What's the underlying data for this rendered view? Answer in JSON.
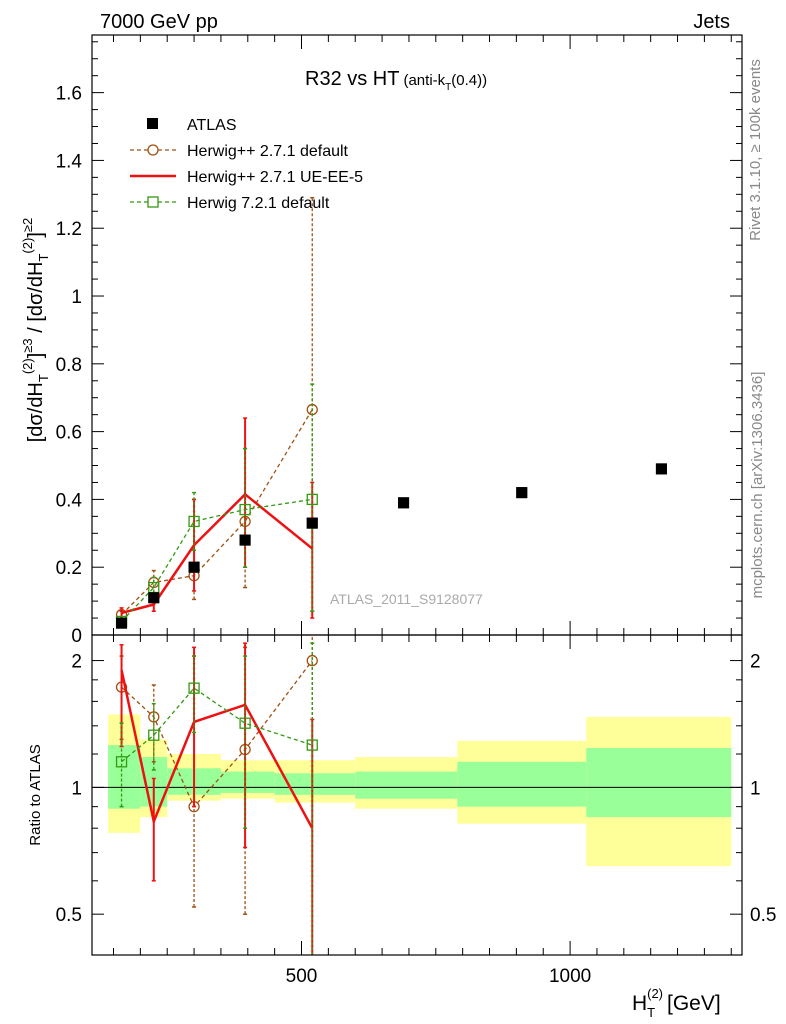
{
  "header": {
    "left": "7000 GeV pp",
    "right": "Jets"
  },
  "side_labels": {
    "rivet": "Rivet 3.1.10, ≥ 100k events",
    "mcplots": "mcplots.cern.ch [arXiv:1306.3436]"
  },
  "watermark": "ATLAS_2011_S9128077",
  "chart_data": [
    {
      "type": "scatter",
      "panel": "main",
      "title": "R32 vs HT",
      "title_suffix": "(anti-k",
      "title_suffix_sub": "T",
      "title_suffix_end": "(0.4))",
      "ylabel": "[dσ/dH_T^(2)]^≥3 / [dσ/dH_T^(2)]^≥2",
      "xlim": [
        110,
        1320
      ],
      "ylim": [
        0,
        1.77
      ],
      "yticks": [
        0,
        0.2,
        0.4,
        0.6,
        0.8,
        1,
        1.2,
        1.4,
        1.6
      ],
      "ytick_labels": [
        "0",
        "0.2",
        "0.4",
        "0.6",
        "0.8",
        "1",
        "1.2",
        "1.4",
        "1.6"
      ],
      "legend_position": "top-left",
      "series": [
        {
          "name": "ATLAS",
          "style": "marker-square",
          "color": "#000000",
          "x": [
            165,
            225,
            300,
            395,
            520,
            690,
            910,
            1170
          ],
          "y": [
            0.035,
            0.11,
            0.2,
            0.28,
            0.33,
            0.39,
            0.42,
            0.49
          ]
        },
        {
          "name": "Herwig++ 2.7.1 default",
          "style": "dashed-circle",
          "color": "#a05010",
          "x": [
            165,
            225,
            300,
            395,
            520
          ],
          "y": [
            0.06,
            0.155,
            0.175,
            0.335,
            0.665
          ],
          "yerr_low": [
            0.045,
            0.125,
            0.105,
            0.14,
            0.07
          ],
          "yerr_high": [
            0.07,
            0.19,
            0.4,
            0.55,
            1.29
          ]
        },
        {
          "name": "Herwig++ 2.7.1 UE-EE-5",
          "style": "solid-line",
          "color": "#ee1111",
          "x": [
            165,
            225,
            300,
            395,
            520
          ],
          "y": [
            0.065,
            0.09,
            0.265,
            0.415,
            0.255
          ],
          "yerr_low": [
            0.05,
            0.07,
            0.13,
            0.2,
            0.05
          ],
          "yerr_high": [
            0.08,
            0.11,
            0.4,
            0.64,
            0.45
          ]
        },
        {
          "name": "Herwig 7.2.1 default",
          "style": "dashed-open-square",
          "color": "#339911",
          "x": [
            165,
            225,
            300,
            395,
            520
          ],
          "y": [
            0.04,
            0.14,
            0.335,
            0.37,
            0.4
          ],
          "yerr_low": [
            0.035,
            0.11,
            0.25,
            0.2,
            0.07
          ],
          "yerr_high": [
            0.05,
            0.17,
            0.42,
            0.55,
            0.74
          ]
        }
      ]
    },
    {
      "type": "scatter",
      "panel": "ratio",
      "ylabel": "Ratio to ATLAS",
      "xlabel": "H_T^(2) [GeV]",
      "xlim": [
        110,
        1320
      ],
      "ylim": [
        0.4,
        2.3
      ],
      "scale": "log",
      "yticks": [
        0.5,
        1,
        2
      ],
      "ytick_labels": [
        "0.5",
        "1",
        "2"
      ],
      "xticks": [
        500,
        1000
      ],
      "xtick_labels": [
        "500",
        "1000"
      ],
      "bands": [
        {
          "x0": 140,
          "x1": 200,
          "y_lo": 0.78,
          "y_hi": 1.49,
          "g_lo": 0.89,
          "g_hi": 1.26
        },
        {
          "x0": 200,
          "x1": 250,
          "y_lo": 0.85,
          "y_hi": 1.3,
          "g_lo": 0.9,
          "g_hi": 1.18
        },
        {
          "x0": 250,
          "x1": 350,
          "y_lo": 0.93,
          "y_hi": 1.2,
          "g_lo": 0.96,
          "g_hi": 1.11
        },
        {
          "x0": 350,
          "x1": 450,
          "y_lo": 0.94,
          "y_hi": 1.16,
          "g_lo": 0.97,
          "g_hi": 1.09
        },
        {
          "x0": 450,
          "x1": 600,
          "y_lo": 0.92,
          "y_hi": 1.16,
          "g_lo": 0.96,
          "g_hi": 1.08
        },
        {
          "x0": 600,
          "x1": 790,
          "y_lo": 0.89,
          "y_hi": 1.18,
          "g_lo": 0.94,
          "g_hi": 1.09
        },
        {
          "x0": 790,
          "x1": 1030,
          "y_lo": 0.82,
          "y_hi": 1.29,
          "g_lo": 0.9,
          "g_hi": 1.15
        },
        {
          "x0": 1030,
          "x1": 1300,
          "y_lo": 0.65,
          "y_hi": 1.47,
          "g_lo": 0.85,
          "g_hi": 1.24
        }
      ],
      "series": [
        {
          "name": "Herwig++ 2.7.1 default",
          "color": "#a05010",
          "x": [
            165,
            225,
            300,
            395,
            520
          ],
          "y": [
            1.73,
            1.47,
            0.9,
            1.23,
            2.0
          ],
          "yerr_low": [
            1.3,
            1.15,
            0.52,
            0.5,
            0.2
          ],
          "yerr_high": [
            2.05,
            1.75,
            2.05,
            2.15,
            3.0
          ]
        },
        {
          "name": "Herwig++ 2.7.1 UE-EE-5",
          "color": "#ee1111",
          "x": [
            165,
            225,
            300,
            395,
            520
          ],
          "y": [
            1.9,
            0.83,
            1.43,
            1.57,
            0.8
          ],
          "yerr_low": [
            1.25,
            0.6,
            0.9,
            0.72,
            0.15
          ],
          "yerr_high": [
            2.18,
            1.05,
            2.15,
            2.2,
            1.45
          ]
        },
        {
          "name": "Herwig 7.2.1 default",
          "color": "#339911",
          "x": [
            165,
            225,
            300,
            395,
            520
          ],
          "y": [
            1.15,
            1.33,
            1.72,
            1.42,
            1.26
          ],
          "yerr_low": [
            0.9,
            1.1,
            1.35,
            0.8,
            0.4
          ],
          "yerr_high": [
            1.42,
            1.58,
            2.05,
            2.05,
            2.2
          ]
        }
      ]
    }
  ]
}
